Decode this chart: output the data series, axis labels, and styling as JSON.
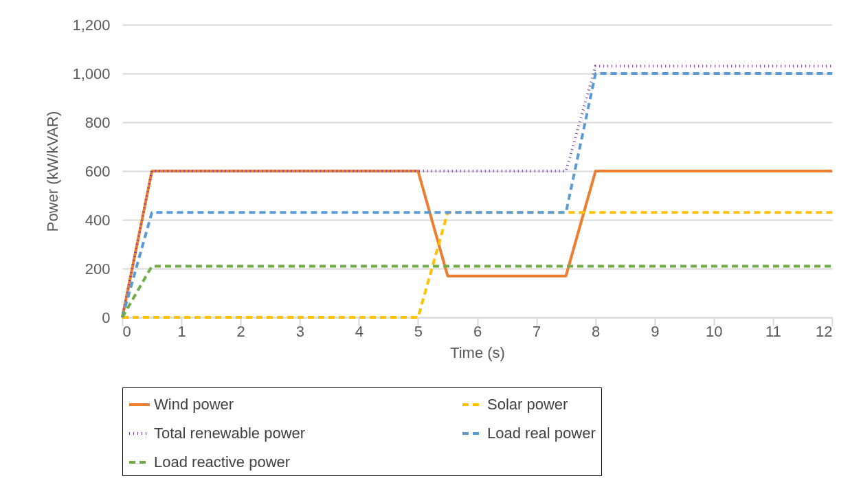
{
  "chart_data": {
    "type": "line",
    "xlabel": "Time (s)",
    "ylabel": "Power (kW/kVAR)",
    "xlim": [
      0,
      12
    ],
    "xticks": [
      0,
      1,
      2,
      3,
      4,
      5,
      6,
      7,
      8,
      9,
      10,
      11,
      12
    ],
    "ylim": [
      0,
      1200
    ],
    "yticks": [
      0,
      {
        "value": 200,
        "label": "200"
      },
      {
        "value": 400,
        "label": "400"
      },
      {
        "value": 600,
        "label": "600"
      },
      {
        "value": 800,
        "label": "800"
      },
      {
        "value": 1000,
        "label": "1,000"
      },
      {
        "value": 1200,
        "label": "1,200"
      }
    ],
    "grid": "y",
    "legend": "bottom",
    "marker": "none",
    "series": [
      {
        "name": "Wind power",
        "color": "#ed7d31",
        "line_style": "solid",
        "x": [
          0,
          0.5,
          5,
          5.5,
          7.5,
          8,
          12
        ],
        "values": [
          0,
          600,
          600,
          170,
          170,
          600,
          600
        ]
      },
      {
        "name": "Solar power",
        "color": "#ffc000",
        "line_style": "dashed",
        "x": [
          0,
          5,
          5.5,
          12
        ],
        "values": [
          0,
          0,
          430,
          430
        ]
      },
      {
        "name": "Total renewable power",
        "color": "#7030a0",
        "line_style": "dotted",
        "x": [
          0,
          0.5,
          7.5,
          8,
          12
        ],
        "values": [
          0,
          600,
          600,
          1030,
          1030
        ]
      },
      {
        "name": "Load real power",
        "color": "#5b9bd5",
        "line_style": "dashed",
        "x": [
          0,
          0.5,
          7.5,
          8,
          12
        ],
        "values": [
          0,
          430,
          430,
          1000,
          1000
        ]
      },
      {
        "name": "Load reactive power",
        "color": "#70ad47",
        "line_style": "dashed",
        "x": [
          0,
          0.5,
          12
        ],
        "values": [
          0,
          210,
          210
        ]
      }
    ]
  }
}
